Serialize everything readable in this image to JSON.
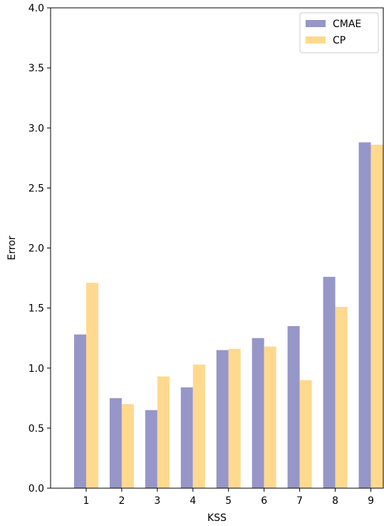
{
  "chart_data": {
    "type": "bar",
    "title": "",
    "xlabel": "KSS",
    "ylabel": "Error",
    "categories": [
      "1",
      "2",
      "3",
      "4",
      "5",
      "6",
      "7",
      "8",
      "9"
    ],
    "ylim": [
      0,
      4.0
    ],
    "yticks": [
      "0.0",
      "0.5",
      "1.0",
      "1.5",
      "2.0",
      "2.5",
      "3.0",
      "3.5",
      "4.0"
    ],
    "grid": false,
    "legend_position": "top-right",
    "series": [
      {
        "name": "CMAE",
        "color": "#9696c8",
        "values": [
          1.28,
          0.75,
          0.65,
          0.84,
          1.15,
          1.25,
          1.35,
          1.76,
          2.88
        ]
      },
      {
        "name": "CP",
        "color": "#ffd98e",
        "values": [
          1.71,
          0.7,
          0.93,
          1.03,
          1.16,
          1.18,
          0.9,
          1.51,
          2.86
        ]
      }
    ]
  }
}
